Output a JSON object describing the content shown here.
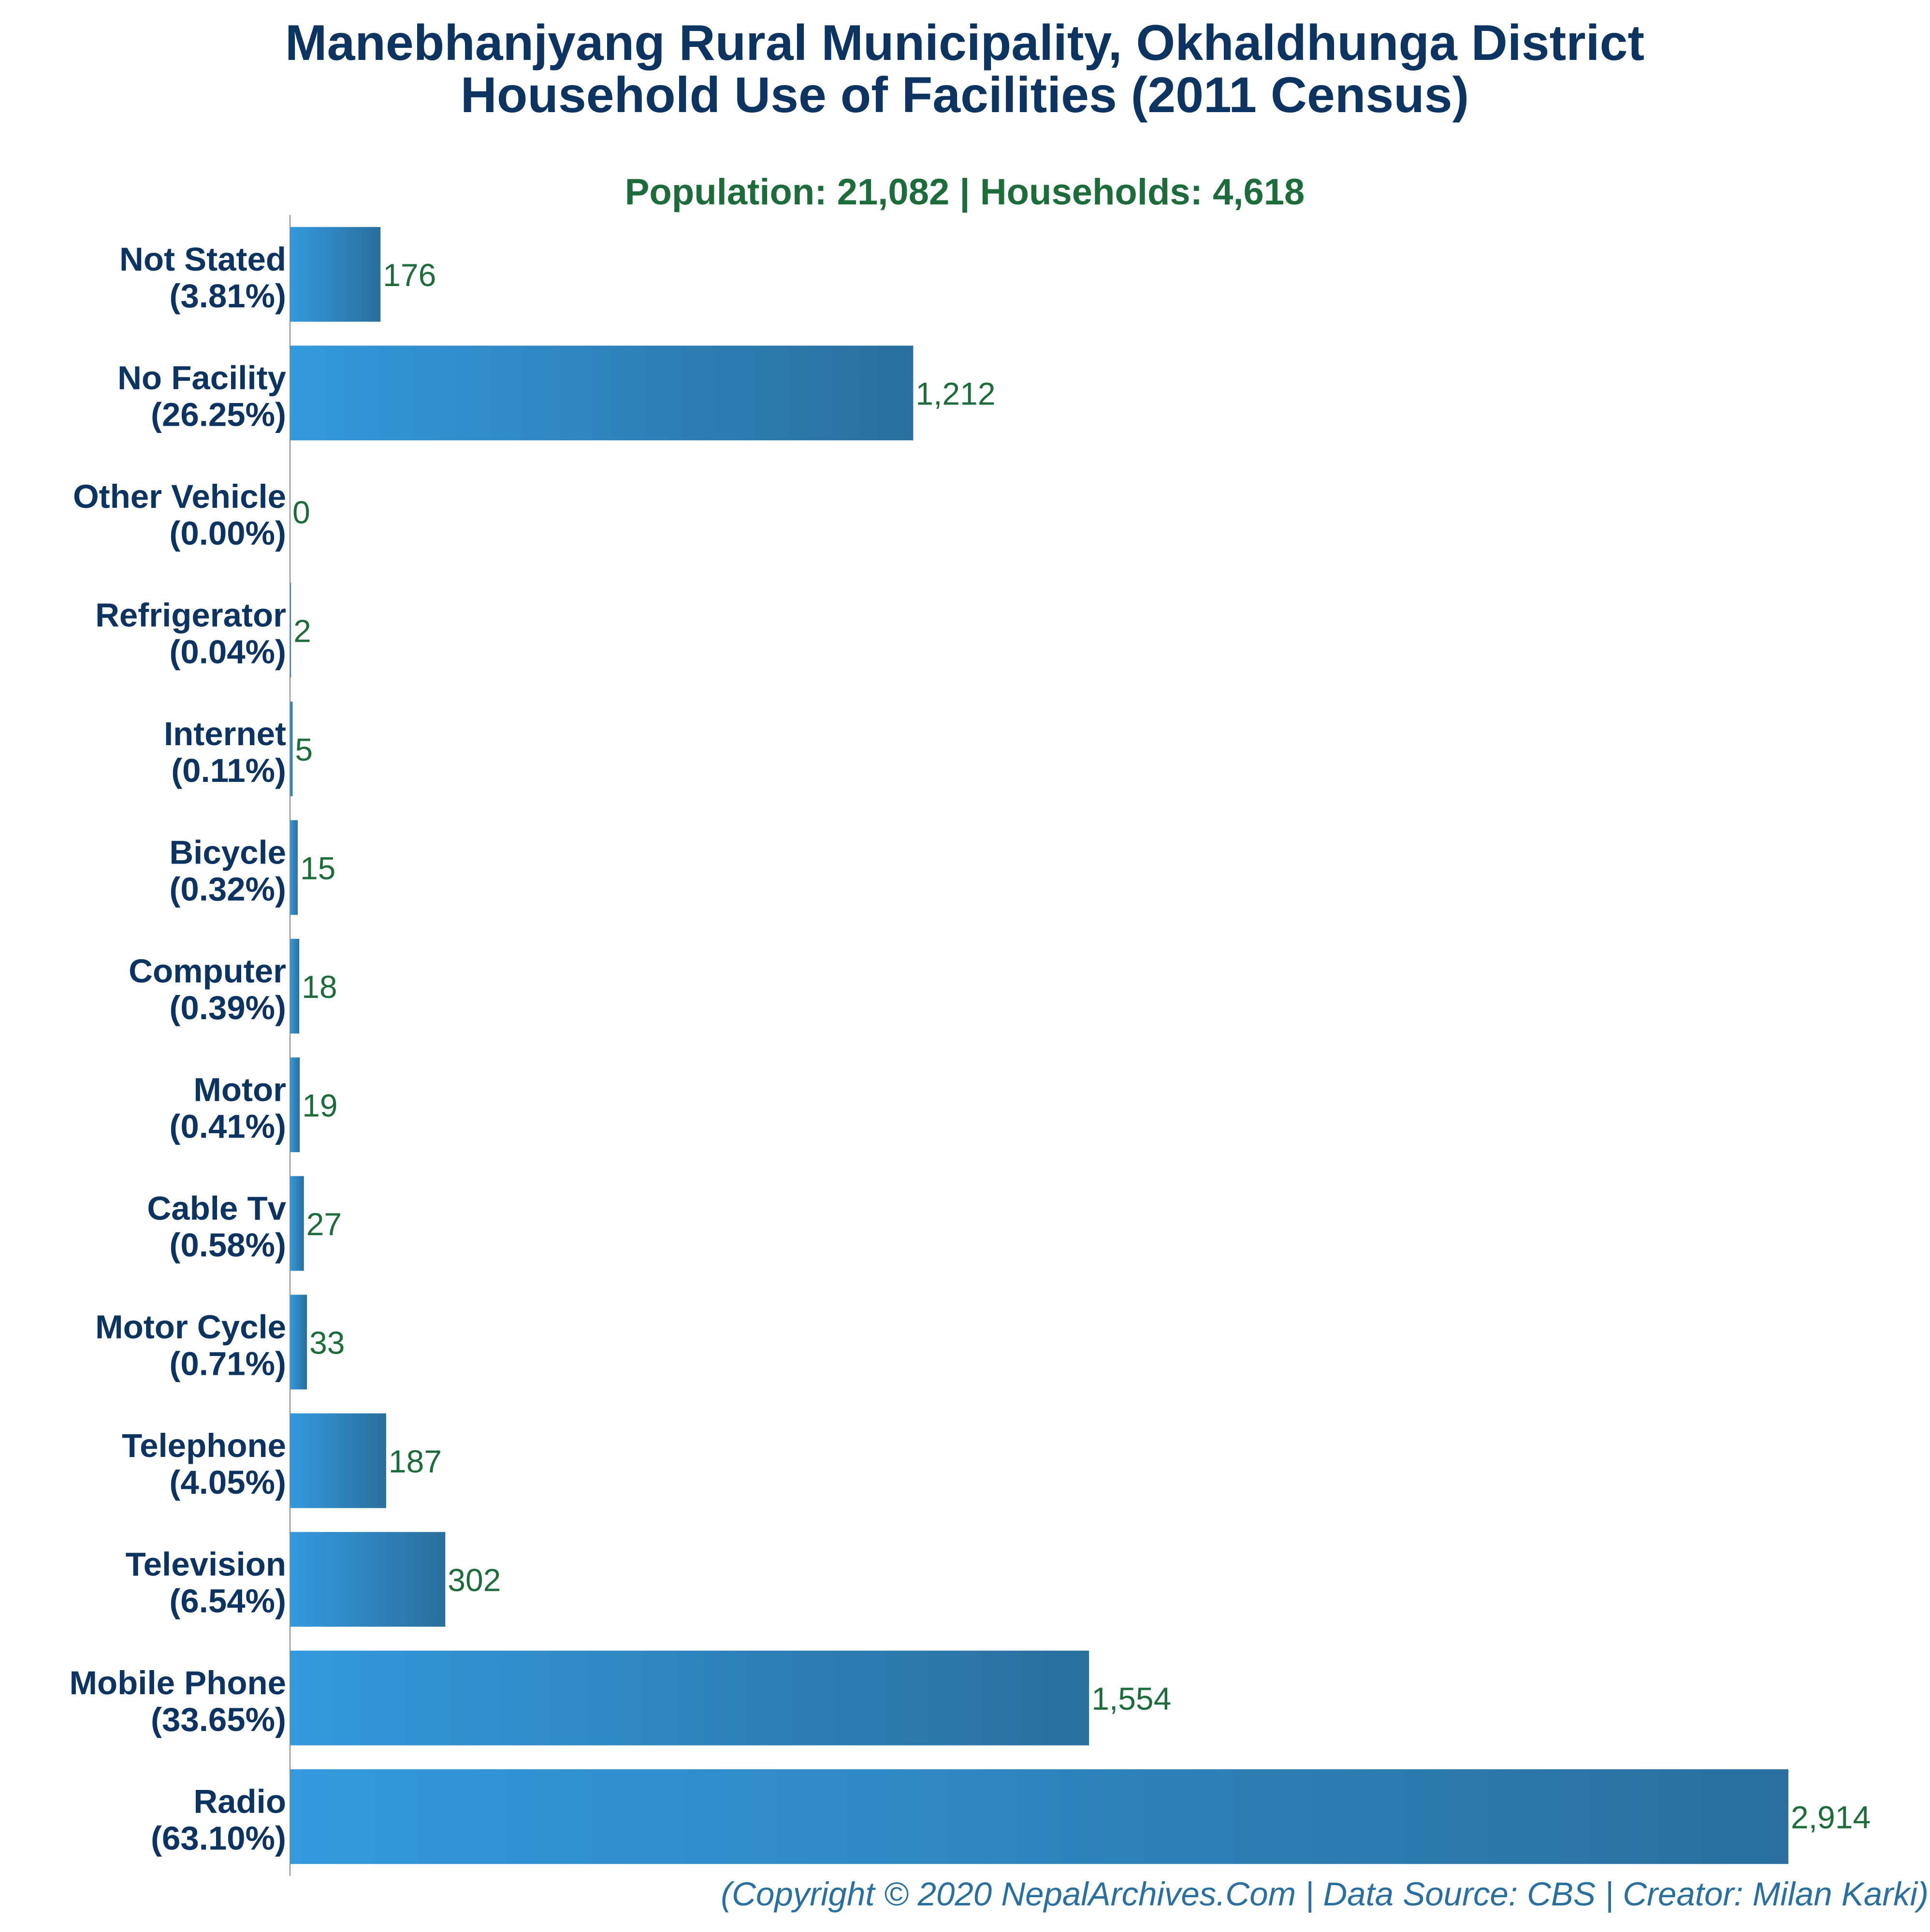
{
  "colors": {
    "title": "#0d3461",
    "subtitle": "#1e6b3c",
    "category_label": "#0d3461",
    "value_label": "#1e6b3c",
    "bar_light": "#3499dd",
    "bar_dark": "#2a6f9d",
    "axis": "#888888",
    "credit": "#2a6f9d"
  },
  "chart_data": {
    "type": "bar",
    "orientation": "horizontal",
    "title_lines": [
      "Manebhanjyang Rural Municipality, Okhaldhunga District",
      "Household Use of Facilities (2011 Census)"
    ],
    "subtitle": "Population: 21,082 | Households: 4,618",
    "categories": [
      "Not Stated",
      "No Facility",
      "Other Vehicle",
      "Refrigerator",
      "Internet",
      "Bicycle",
      "Computer",
      "Motor",
      "Cable Tv",
      "Motor Cycle",
      "Telephone",
      "Television",
      "Mobile Phone",
      "Radio"
    ],
    "percent_labels": [
      "(3.81%)",
      "(26.25%)",
      "(0.00%)",
      "(0.04%)",
      "(0.11%)",
      "(0.32%)",
      "(0.39%)",
      "(0.41%)",
      "(0.58%)",
      "(0.71%)",
      "(4.05%)",
      "(6.54%)",
      "(33.65%)",
      "(63.10%)"
    ],
    "values": [
      176,
      1212,
      0,
      2,
      5,
      15,
      18,
      19,
      27,
      33,
      187,
      302,
      1554,
      2914
    ],
    "value_labels": [
      "176",
      "1,212",
      "0",
      "2",
      "5",
      "15",
      "18",
      "19",
      "27",
      "33",
      "187",
      "302",
      "1,554",
      "2,914"
    ],
    "xlim": [
      0,
      2914
    ],
    "grid": false,
    "legend": "none"
  },
  "credit": "(Copyright © 2020 NepalArchives.Com | Data Source: CBS | Creator: Milan Karki)"
}
